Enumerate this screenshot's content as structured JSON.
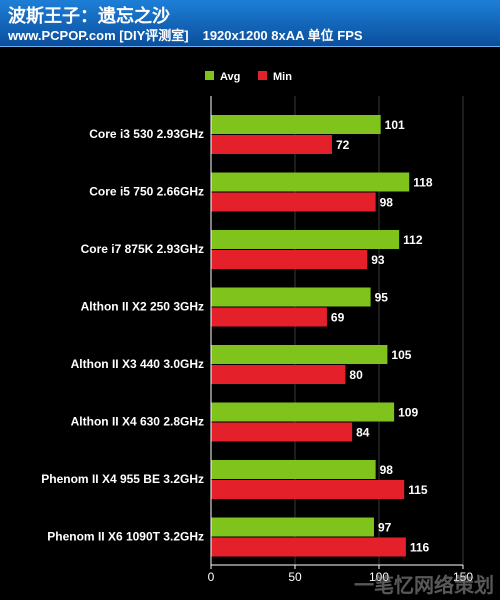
{
  "header": {
    "title": "波斯王子：遗忘之沙",
    "site": "www.PCPOP.com [DIY评测室]",
    "test": "1920x1200 8xAA 单位 FPS"
  },
  "watermark": "一笔忆网络策划",
  "colors": {
    "avg": "#7fc31c",
    "min": "#e4202b"
  },
  "chart_data": {
    "type": "bar",
    "orientation": "horizontal",
    "categories": [
      "Core i3 530 2.93GHz",
      "Core i5 750 2.66GHz",
      "Core i7 875K 2.93GHz",
      "Althon II X2 250 3GHz",
      "Althon II X3 440 3.0GHz",
      "Althon II X4 630 2.8GHz",
      "Phenom II X4 955 BE 3.2GHz",
      "Phenom II X6 1090T 3.2GHz"
    ],
    "series": [
      {
        "name": "Avg",
        "values": [
          101,
          118,
          112,
          95,
          105,
          109,
          98,
          97
        ]
      },
      {
        "name": "Min",
        "values": [
          72,
          98,
          93,
          69,
          80,
          84,
          115,
          116
        ]
      }
    ],
    "xlim": [
      0,
      150
    ],
    "xticks": [
      "0",
      "50",
      "100",
      "150"
    ],
    "grid": true,
    "legend": "top"
  }
}
